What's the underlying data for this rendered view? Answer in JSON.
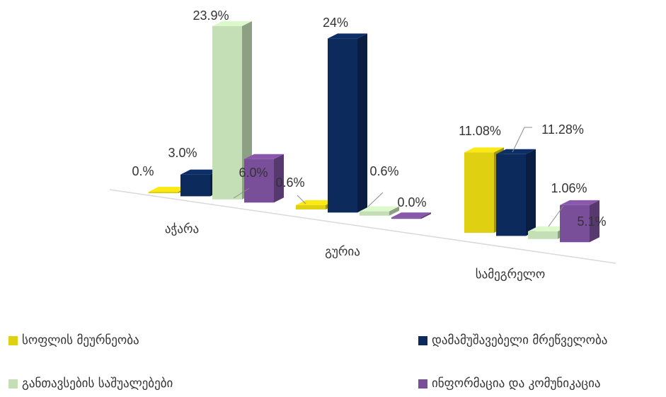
{
  "chart_data": {
    "type": "bar",
    "categories": [
      "აჭარა",
      "გურია",
      "სამეგრელო"
    ],
    "series": [
      {
        "name": "სოფლის მეურნეობა",
        "color": "#e0d012",
        "values": [
          0.0,
          0.6,
          11.08
        ],
        "labels": [
          "0.%",
          "0.6%",
          "11.08%"
        ]
      },
      {
        "name": "დამამუშავებელი მრეწველობა",
        "color": "#0c2a5c",
        "values": [
          3.0,
          24.0,
          11.28
        ],
        "labels": [
          "3.0%",
          "24%",
          "11.28%"
        ]
      },
      {
        "name": "განთავსების საშუალებები",
        "color": "#c4deb6",
        "values": [
          23.9,
          0.6,
          1.06
        ],
        "labels": [
          "23.9%",
          "0.6%",
          "1.06%"
        ]
      },
      {
        "name": "ინფორმაცია და კომუნიკაცია",
        "color": "#7a4f9a",
        "values": [
          6.0,
          0.0,
          5.1
        ],
        "labels": [
          "6.0%",
          "0.0%",
          "5.1%"
        ]
      }
    ],
    "ylim": [
      0,
      24
    ],
    "legend_position": "bottom"
  }
}
